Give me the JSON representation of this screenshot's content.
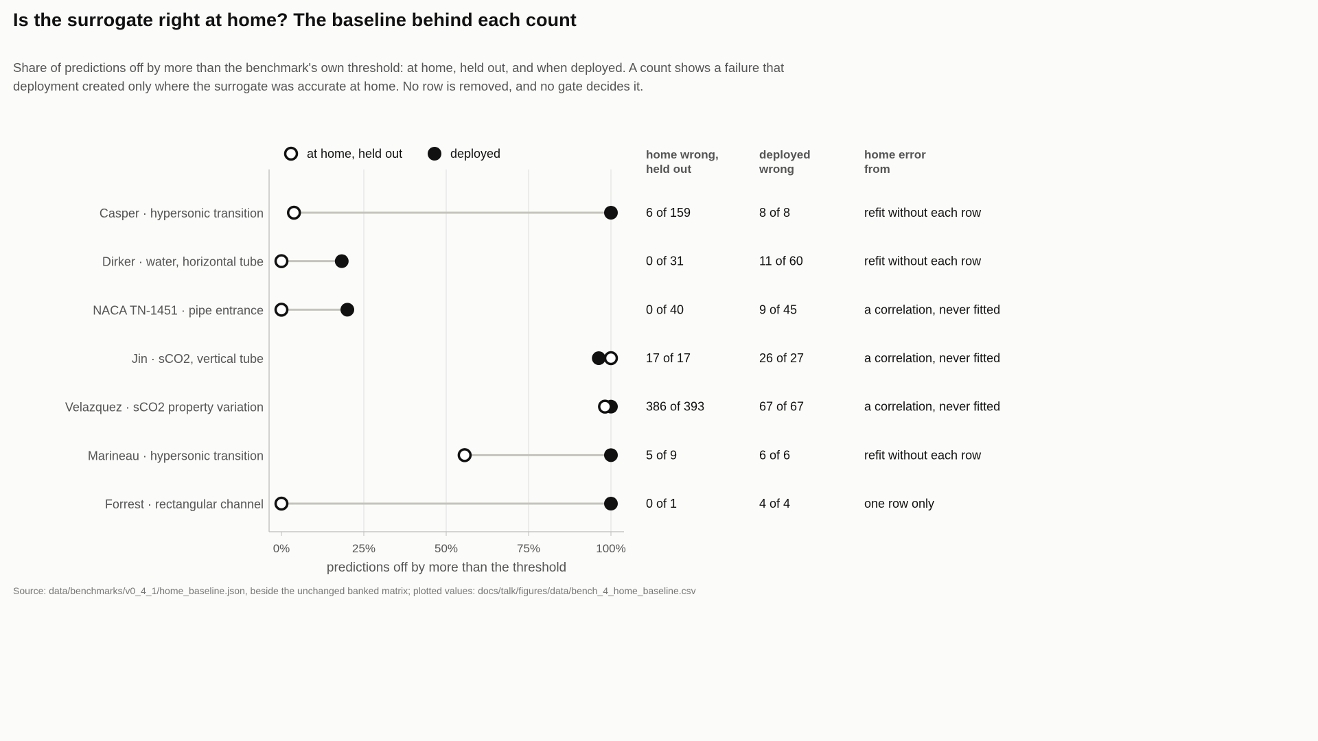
{
  "title": "Is the surrogate right at home? The baseline behind each count",
  "subtitle": "Share of predictions off by more than the benchmark's own threshold: at home, held out, and when deployed. A count shows a failure that deployment created only where the surrogate was accurate at home. No row is removed, and no gate decides it.",
  "source": "Source: data/benchmarks/v0_4_1/home_baseline.json, beside the unchanged banked matrix; plotted values: docs/talk/figures/data/bench_4_home_baseline.csv",
  "colors": {
    "background": "#fbfbf9",
    "marker": "#111111",
    "hollow_fill": "#ffffff",
    "connector": "#c4c4bc",
    "grid": "#dedede",
    "axis": "#bdbdbd",
    "label_text": "#555555",
    "value_text": "#111111"
  },
  "chart_data": {
    "type": "dumbbell",
    "xlabel": "predictions off by more than the threshold",
    "xlim": [
      0,
      1
    ],
    "xticks": [
      0,
      0.25,
      0.5,
      0.75,
      1
    ],
    "xtick_labels": [
      "0%",
      "25%",
      "50%",
      "75%",
      "100%"
    ],
    "grid": "vertical",
    "legend_position": "top",
    "legend": [
      {
        "label": "at home, held out",
        "style": "hollow"
      },
      {
        "label": "deployed",
        "style": "filled"
      }
    ],
    "table_headers": [
      [
        "home wrong,",
        "held out"
      ],
      [
        "deployed",
        "wrong"
      ],
      [
        "home error",
        "from"
      ]
    ],
    "rows": [
      {
        "label": "Casper · hypersonic transition",
        "home": 0.038,
        "deployed": 1.0,
        "home_count": "6 of 159",
        "deployed_count": "8 of 8",
        "error_from": "refit without each row"
      },
      {
        "label": "Dirker · water, horizontal tube",
        "home": 0.0,
        "deployed": 0.183,
        "home_count": "0 of 31",
        "deployed_count": "11 of 60",
        "error_from": "refit without each row"
      },
      {
        "label": "NACA TN-1451 · pipe entrance",
        "home": 0.0,
        "deployed": 0.2,
        "home_count": "0 of 40",
        "deployed_count": "9 of 45",
        "error_from": "a correlation, never fitted"
      },
      {
        "label": "Jin · sCO2, vertical tube",
        "home": 1.0,
        "deployed": 0.963,
        "home_count": "17 of 17",
        "deployed_count": "26 of 27",
        "error_from": "a correlation, never fitted"
      },
      {
        "label": "Velazquez · sCO2 property variation",
        "home": 0.982,
        "deployed": 1.0,
        "home_count": "386 of 393",
        "deployed_count": "67 of 67",
        "error_from": "a correlation, never fitted"
      },
      {
        "label": "Marineau · hypersonic transition",
        "home": 0.556,
        "deployed": 1.0,
        "home_count": "5 of 9",
        "deployed_count": "6 of 6",
        "error_from": "refit without each row"
      },
      {
        "label": "Forrest · rectangular channel",
        "home": 0.0,
        "deployed": 1.0,
        "home_count": "0 of 1",
        "deployed_count": "4 of 4",
        "error_from": "one row only"
      }
    ]
  }
}
